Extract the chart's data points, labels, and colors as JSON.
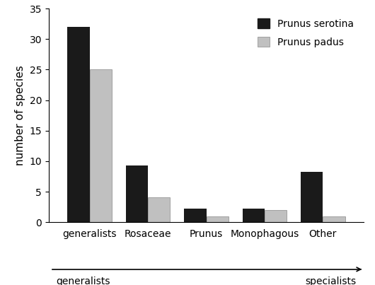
{
  "categories": [
    "generalists",
    "Rosaceae",
    "Prunus",
    "Monophagous",
    "Other"
  ],
  "serotina_values": [
    32,
    9.3,
    2.2,
    2.2,
    8.3
  ],
  "padus_values": [
    25,
    4.1,
    1,
    2,
    1
  ],
  "serotina_color": "#1a1a1a",
  "padus_color": "#c0c0c0",
  "ylabel": "number of species",
  "ylim": [
    0,
    35
  ],
  "yticks": [
    0,
    5,
    10,
    15,
    20,
    25,
    30,
    35
  ],
  "legend_serotina": "Prunus serotina",
  "legend_padus": "Prunus padus",
  "bar_width": 0.38,
  "bottom_label_left": "generalists",
  "bottom_label_right": "specialists",
  "background_color": "#ffffff",
  "title_fontsize": 11,
  "axis_fontsize": 11,
  "tick_fontsize": 10,
  "legend_fontsize": 10
}
